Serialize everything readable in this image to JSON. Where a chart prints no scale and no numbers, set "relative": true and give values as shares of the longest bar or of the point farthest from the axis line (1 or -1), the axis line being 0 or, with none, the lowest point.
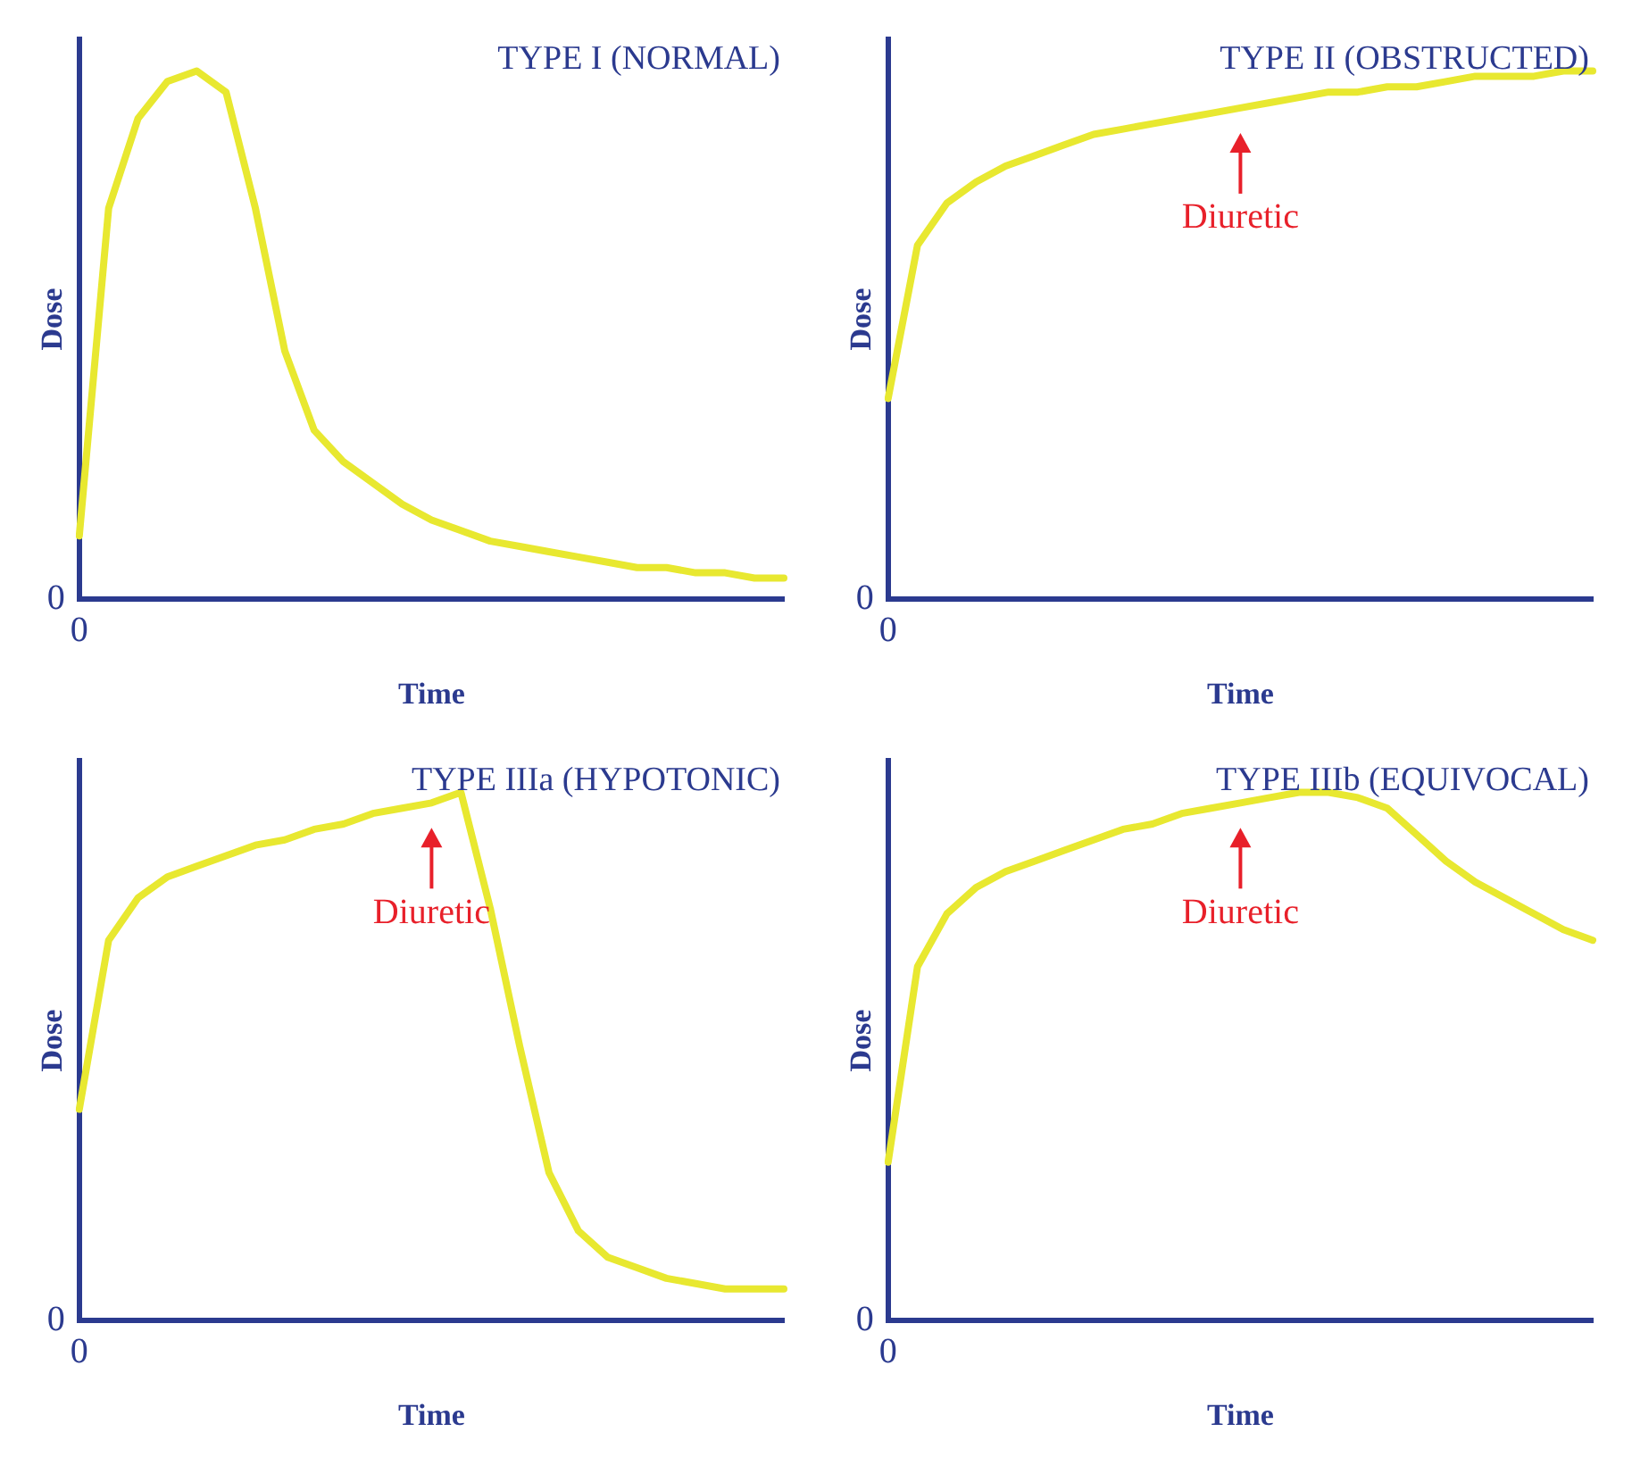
{
  "chart_data": [
    {
      "type": "line",
      "title": "TYPE I (NORMAL)",
      "xlabel": "Time",
      "ylabel": "Dose",
      "relative": true,
      "marker": "none",
      "grid": false,
      "legend": false,
      "categories": [
        null,
        null,
        null,
        null,
        null,
        null,
        null,
        null,
        null,
        null,
        null,
        null,
        null,
        null,
        null,
        null,
        null,
        null,
        null,
        null,
        null,
        null,
        null,
        null,
        null
      ],
      "series": [
        {
          "color": "#e8e830",
          "values": [
            0.12,
            0.74,
            0.91,
            0.98,
            1.0,
            0.96,
            0.74,
            0.47,
            0.32,
            0.26,
            0.22,
            0.18,
            0.15,
            0.13,
            0.11,
            0.1,
            0.09,
            0.08,
            0.07,
            0.06,
            0.06,
            0.05,
            0.05,
            0.04,
            0.04
          ]
        }
      ],
      "annotations": [
        "0",
        "0"
      ]
    },
    {
      "type": "line",
      "title": "TYPE II (OBSTRUCTED)",
      "xlabel": "Time",
      "ylabel": "Dose",
      "relative": true,
      "marker": "none",
      "grid": false,
      "legend": false,
      "categories": [
        null,
        null,
        null,
        null,
        null,
        null,
        null,
        null,
        null,
        null,
        null,
        null,
        null,
        null,
        null,
        null,
        null,
        null,
        null,
        null,
        null,
        null,
        null,
        null,
        null
      ],
      "series": [
        {
          "color": "#e8e830",
          "values": [
            0.38,
            0.67,
            0.75,
            0.79,
            0.82,
            0.84,
            0.86,
            0.88,
            0.89,
            0.9,
            0.91,
            0.92,
            0.93,
            0.94,
            0.95,
            0.96,
            0.96,
            0.97,
            0.97,
            0.98,
            0.99,
            0.99,
            0.99,
            1.0,
            1.0
          ]
        }
      ],
      "annotations": [
        "0",
        "0",
        "Diuretic"
      ]
    },
    {
      "type": "line",
      "title": "TYPE IIIa (HYPOTONIC)",
      "xlabel": "Time",
      "ylabel": "Dose",
      "relative": true,
      "marker": "none",
      "grid": false,
      "legend": false,
      "categories": [
        null,
        null,
        null,
        null,
        null,
        null,
        null,
        null,
        null,
        null,
        null,
        null,
        null,
        null,
        null,
        null,
        null,
        null,
        null,
        null,
        null,
        null,
        null,
        null,
        null
      ],
      "series": [
        {
          "color": "#e8e830",
          "values": [
            0.4,
            0.72,
            0.8,
            0.84,
            0.86,
            0.88,
            0.9,
            0.91,
            0.93,
            0.94,
            0.96,
            0.97,
            0.98,
            1.0,
            0.78,
            0.52,
            0.28,
            0.17,
            0.12,
            0.1,
            0.08,
            0.07,
            0.06,
            0.06,
            0.06
          ]
        }
      ],
      "annotations": [
        "0",
        "0",
        "Diuretic"
      ]
    },
    {
      "type": "line",
      "title": "TYPE IIIb (EQUIVOCAL)",
      "xlabel": "Time",
      "ylabel": "Dose",
      "relative": true,
      "marker": "none",
      "grid": false,
      "legend": false,
      "categories": [
        null,
        null,
        null,
        null,
        null,
        null,
        null,
        null,
        null,
        null,
        null,
        null,
        null,
        null,
        null,
        null,
        null,
        null,
        null,
        null,
        null,
        null,
        null,
        null,
        null
      ],
      "series": [
        {
          "color": "#e8e830",
          "values": [
            0.3,
            0.67,
            0.77,
            0.82,
            0.85,
            0.87,
            0.89,
            0.91,
            0.93,
            0.94,
            0.96,
            0.97,
            0.98,
            0.99,
            1.0,
            1.0,
            0.99,
            0.97,
            0.92,
            0.87,
            0.83,
            0.8,
            0.77,
            0.74,
            0.72
          ]
        }
      ],
      "annotations": [
        "0",
        "0",
        "Diuretic"
      ]
    }
  ]
}
